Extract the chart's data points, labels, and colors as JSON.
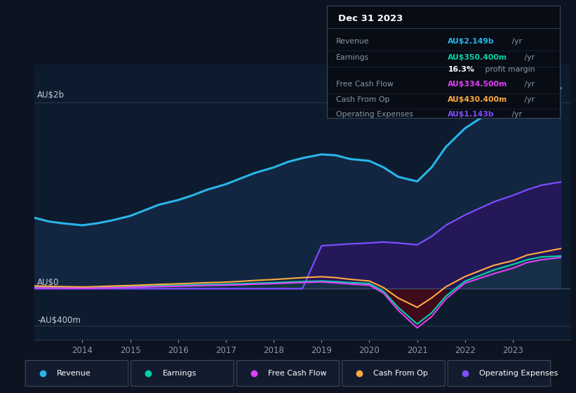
{
  "background_color": "#0d1320",
  "plot_bg_color": "#0d1b2e",
  "ylabel_top": "AU$2b",
  "ylabel_zero": "AU$0",
  "ylabel_bottom": "-AU$400m",
  "years": [
    2013.0,
    2013.3,
    2013.6,
    2014.0,
    2014.3,
    2014.6,
    2015.0,
    2015.3,
    2015.6,
    2016.0,
    2016.3,
    2016.6,
    2017.0,
    2017.3,
    2017.6,
    2018.0,
    2018.3,
    2018.6,
    2019.0,
    2019.3,
    2019.6,
    2020.0,
    2020.3,
    2020.6,
    2021.0,
    2021.3,
    2021.6,
    2022.0,
    2022.3,
    2022.6,
    2023.0,
    2023.3,
    2023.6,
    2024.0
  ],
  "revenue": [
    760,
    720,
    700,
    680,
    700,
    730,
    780,
    840,
    900,
    950,
    1000,
    1060,
    1120,
    1180,
    1240,
    1300,
    1360,
    1400,
    1440,
    1430,
    1390,
    1370,
    1300,
    1200,
    1150,
    1300,
    1520,
    1720,
    1820,
    1900,
    1980,
    2060,
    2130,
    2149
  ],
  "earnings": [
    20,
    18,
    16,
    14,
    16,
    20,
    24,
    28,
    32,
    36,
    40,
    44,
    48,
    52,
    58,
    64,
    70,
    76,
    82,
    75,
    65,
    55,
    -30,
    -200,
    -380,
    -260,
    -80,
    80,
    140,
    200,
    260,
    310,
    340,
    350
  ],
  "free_cash_flow": [
    10,
    8,
    6,
    4,
    6,
    10,
    14,
    18,
    22,
    26,
    30,
    34,
    38,
    42,
    48,
    54,
    60,
    66,
    72,
    62,
    50,
    38,
    -50,
    -230,
    -420,
    -300,
    -110,
    60,
    110,
    160,
    220,
    280,
    310,
    334
  ],
  "cash_from_op": [
    30,
    26,
    22,
    18,
    22,
    28,
    34,
    40,
    46,
    52,
    58,
    64,
    70,
    78,
    88,
    98,
    108,
    118,
    128,
    118,
    100,
    82,
    10,
    -100,
    -200,
    -100,
    20,
    130,
    190,
    250,
    300,
    360,
    390,
    430
  ],
  "op_expenses": [
    0,
    0,
    0,
    0,
    0,
    0,
    0,
    0,
    0,
    0,
    0,
    0,
    0,
    0,
    0,
    0,
    0,
    0,
    460,
    470,
    480,
    490,
    500,
    490,
    470,
    560,
    680,
    790,
    860,
    930,
    1000,
    1060,
    1110,
    1143
  ],
  "revenue_color": "#29b5e8",
  "earnings_color": "#00d4aa",
  "free_cash_flow_color": "#e040fb",
  "cash_from_op_color": "#ffab40",
  "op_expenses_color": "#7c4dff",
  "revenue_fill_alpha": 0.75,
  "op_expenses_fill_alpha": 0.8,
  "xlim_start": 2013.0,
  "xlim_end": 2024.2,
  "ylim_min": -550,
  "ylim_max": 2400,
  "zero_level": 0,
  "top_level": 2000,
  "bottom_level": -400,
  "xticks": [
    2014,
    2015,
    2016,
    2017,
    2018,
    2019,
    2020,
    2021,
    2022,
    2023
  ],
  "info_title": "Dec 31 2023",
  "info_rows": [
    {
      "label": "Revenue",
      "value": "AU$2.149b",
      "suffix": " /yr",
      "value_color": "#29b5e8"
    },
    {
      "label": "Earnings",
      "value": "AU$350.400m",
      "suffix": " /yr",
      "value_color": "#00d4aa"
    },
    {
      "label": "",
      "value": "16.3%",
      "suffix": " profit margin",
      "value_color": "#ffffff"
    },
    {
      "label": "Free Cash Flow",
      "value": "AU$334.500m",
      "suffix": " /yr",
      "value_color": "#e040fb"
    },
    {
      "label": "Cash From Op",
      "value": "AU$430.400m",
      "suffix": " /yr",
      "value_color": "#ffab40"
    },
    {
      "label": "Operating Expenses",
      "value": "AU$1.143b",
      "suffix": " /yr",
      "value_color": "#7c4dff"
    }
  ],
  "legend_items": [
    {
      "color": "#29b5e8",
      "label": "Revenue"
    },
    {
      "color": "#00d4aa",
      "label": "Earnings"
    },
    {
      "color": "#e040fb",
      "label": "Free Cash Flow"
    },
    {
      "color": "#ffab40",
      "label": "Cash From Op"
    },
    {
      "color": "#7c4dff",
      "label": "Operating Expenses"
    }
  ]
}
